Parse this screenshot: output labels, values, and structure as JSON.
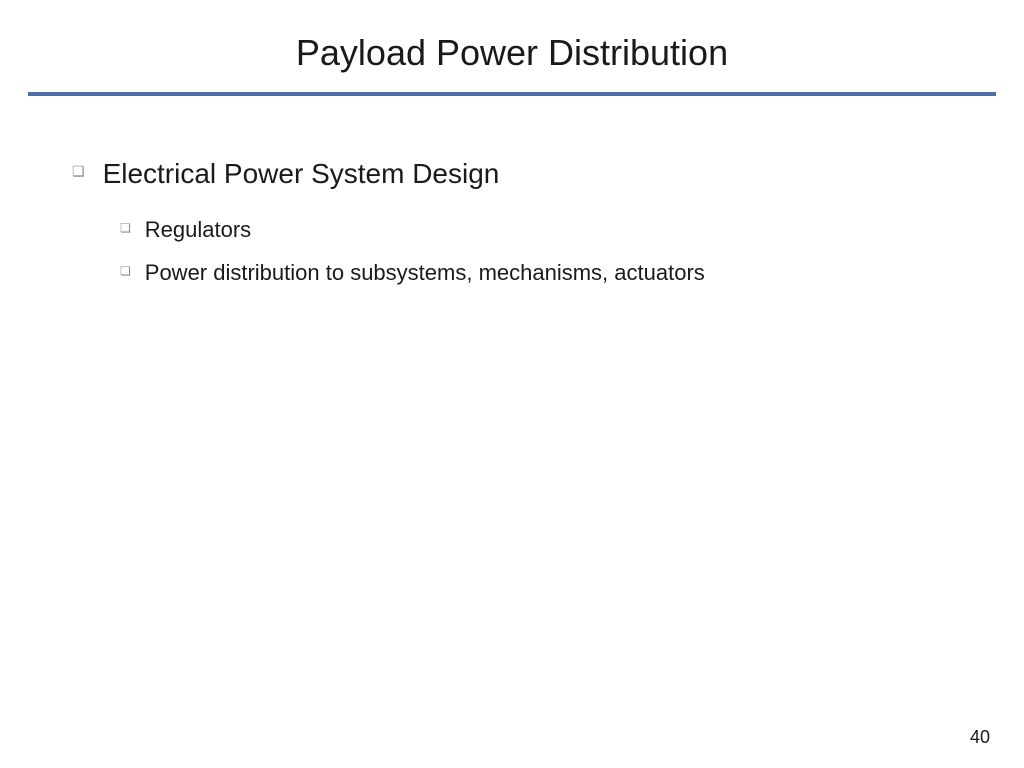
{
  "slide": {
    "title": "Payload Power Distribution",
    "title_fontsize": 36,
    "title_color": "#1a1a1a",
    "divider_color": "#4a6fa8",
    "divider_thickness": 4,
    "background_color": "#ffffff",
    "page_number": "40",
    "page_number_fontsize": 18,
    "bullets": [
      {
        "level": 1,
        "text": "Electrical Power System Design",
        "fontsize": 28,
        "marker": "❏",
        "marker_color": "#888888"
      },
      {
        "level": 2,
        "text": "Regulators",
        "fontsize": 22,
        "marker": "❏",
        "marker_color": "#888888"
      },
      {
        "level": 2,
        "text": "Power distribution to subsystems, mechanisms, actuators",
        "fontsize": 22,
        "marker": "❏",
        "marker_color": "#888888"
      }
    ]
  }
}
